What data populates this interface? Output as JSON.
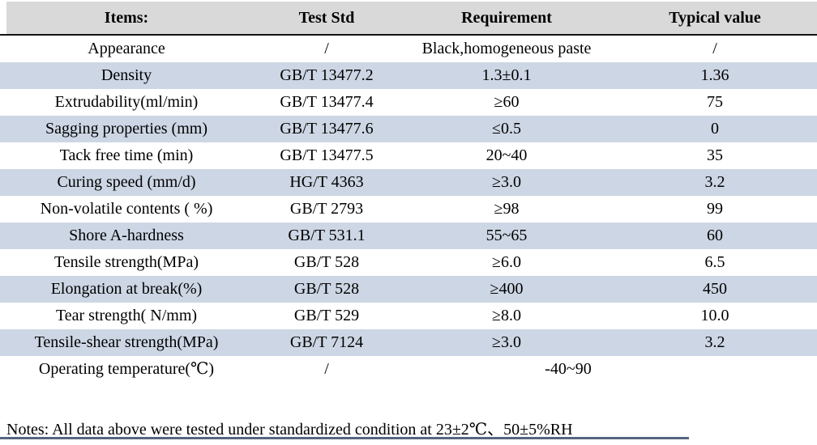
{
  "colors": {
    "header_bg": "#d9d9d9",
    "alt_row_bg": "#cdd6e4",
    "header_border": "#141414",
    "bottom_bar": "#3a4a66",
    "text": "#000000",
    "page_bg": "#ffffff"
  },
  "table": {
    "columns": [
      "Items:",
      "Test Std",
      "Requirement",
      "Typical value"
    ],
    "rows": [
      {
        "item": "Appearance",
        "test_std": "/",
        "requirement": "Black,homogeneous paste",
        "typical_value": "/"
      },
      {
        "item": "Density",
        "test_std": "GB/T 13477.2",
        "requirement": "1.3±0.1",
        "typical_value": "1.36"
      },
      {
        "item": "Extrudability(ml/min)",
        "test_std": "GB/T 13477.4",
        "requirement": "≥60",
        "typical_value": "75"
      },
      {
        "item": "Sagging properties (mm)",
        "test_std": "GB/T 13477.6",
        "requirement": "≤0.5",
        "typical_value": "0"
      },
      {
        "item": "Tack free time (min)",
        "test_std": "GB/T 13477.5",
        "requirement": "20~40",
        "typical_value": "35"
      },
      {
        "item": "Curing speed (mm/d)",
        "test_std": "HG/T 4363",
        "requirement": "≥3.0",
        "typical_value": "3.2"
      },
      {
        "item": "Non-volatile contents ( %)",
        "test_std": "GB/T 2793",
        "requirement": "≥98",
        "typical_value": "99"
      },
      {
        "item": "Shore A-hardness",
        "test_std": "GB/T 531.1",
        "requirement": "55~65",
        "typical_value": "60"
      },
      {
        "item": "Tensile strength(MPa)",
        "test_std": "GB/T 528",
        "requirement": "≥6.0",
        "typical_value": "6.5"
      },
      {
        "item": "Elongation at break(%)",
        "test_std": "GB/T 528",
        "requirement": "≥400",
        "typical_value": "450"
      },
      {
        "item": "Tear strength( N/mm)",
        "test_std": "GB/T 529",
        "requirement": "≥8.0",
        "typical_value": "10.0"
      },
      {
        "item": "Tensile-shear strength(MPa)",
        "test_std": "GB/T 7124",
        "requirement": "≥3.0",
        "typical_value": "3.2"
      },
      {
        "item": "Operating temperature(℃)",
        "test_std": "/",
        "requirement": "-40~90",
        "typical_value": null,
        "merged": true
      }
    ]
  },
  "notes": {
    "text": "Notes: All data above were tested under standardized condition at 23±2℃、50±5%RH"
  }
}
